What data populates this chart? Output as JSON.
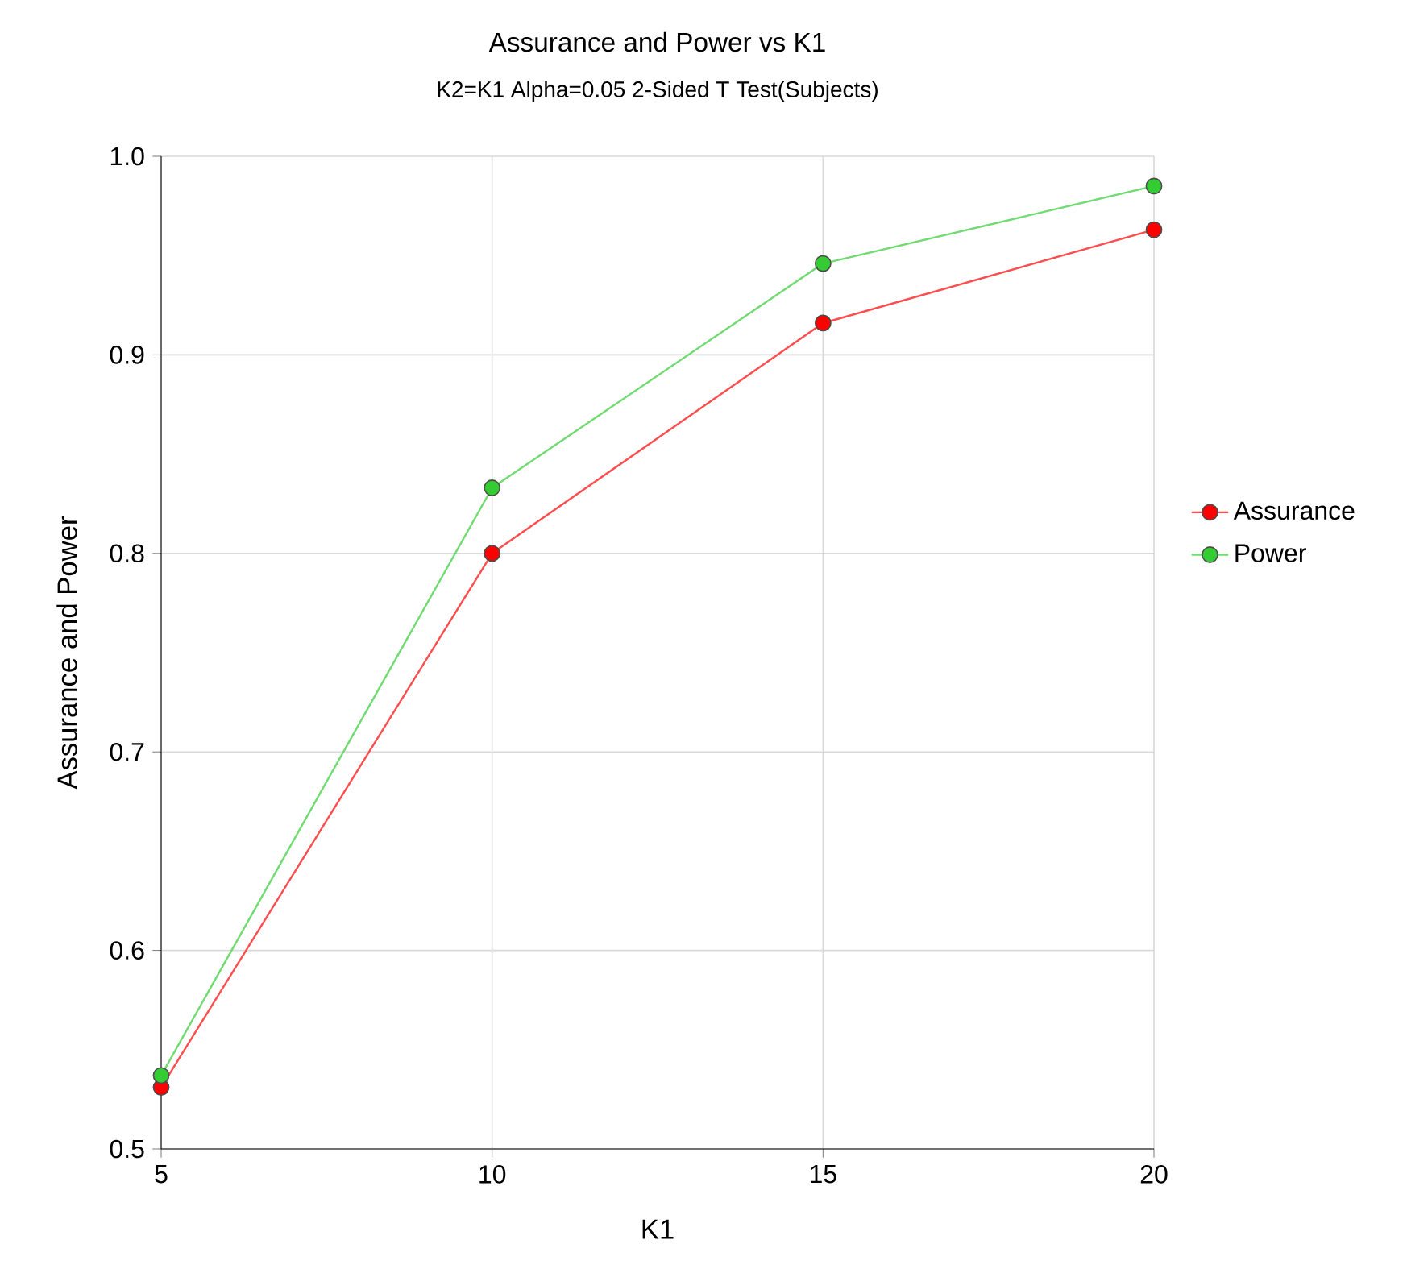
{
  "chart_data": {
    "type": "line",
    "title": "Assurance and Power vs K1",
    "subtitle": "K2=K1 Alpha=0.05 2-Sided T Test(Subjects)",
    "xlabel": "K1",
    "ylabel": "Assurance and Power",
    "x": [
      5,
      10,
      15,
      20
    ],
    "series": [
      {
        "name": "Assurance",
        "color": "#ff0000",
        "values": [
          0.531,
          0.8,
          0.916,
          0.963
        ]
      },
      {
        "name": "Power",
        "color": "#33cc33",
        "values": [
          0.537,
          0.833,
          0.946,
          0.985
        ]
      }
    ],
    "xlim": [
      5,
      20
    ],
    "xticks": [
      5,
      10,
      15,
      20
    ],
    "ylim": [
      0.5,
      1.0
    ],
    "yticks": [
      {
        "value": 0.5,
        "label": "0.5"
      },
      {
        "value": 0.6,
        "label": "0.6"
      },
      {
        "value": 0.7,
        "label": "0.7"
      },
      {
        "value": 0.8,
        "label": "0.8"
      },
      {
        "value": 0.9,
        "label": "0.9"
      },
      {
        "value": 1.0,
        "label": "1.0"
      }
    ],
    "grid": true,
    "legend": "right",
    "marker": "circle",
    "line_style": "solid"
  }
}
